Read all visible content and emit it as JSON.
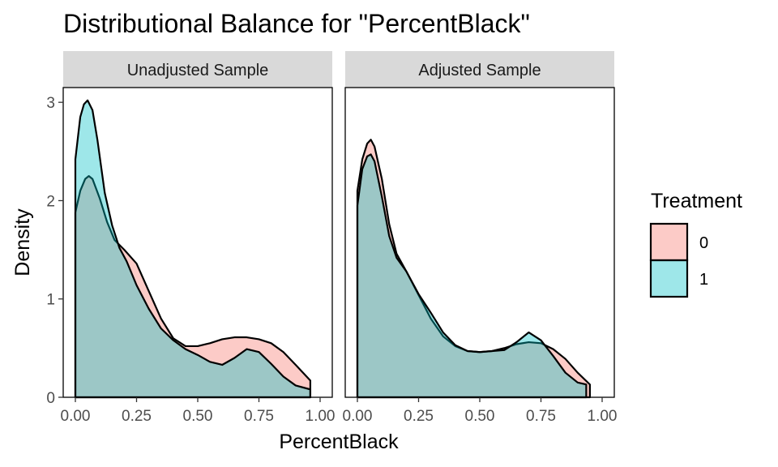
{
  "chart_data": {
    "type": "area",
    "title": "Distributional Balance for \"PercentBlack\"",
    "xlabel": "PercentBlack",
    "ylabel": "Density",
    "xlim": [
      0,
      1
    ],
    "ylim": [
      0,
      3.15
    ],
    "x_ticks": [
      0,
      0.25,
      0.5,
      0.75,
      1
    ],
    "x_tick_labels": [
      "0.00",
      "0.25",
      "0.50",
      "0.75",
      "1.00"
    ],
    "y_ticks": [
      0,
      1,
      2,
      3
    ],
    "y_tick_labels": [
      "0",
      "1",
      "2",
      "3"
    ],
    "grid": false,
    "legend": {
      "title": "Treatment",
      "position": "right",
      "entries": [
        {
          "label": "0",
          "color": "#F8766D"
        },
        {
          "label": "1",
          "color": "#00BFC4"
        }
      ]
    },
    "panels": [
      {
        "name": "Unadjusted Sample",
        "series": [
          {
            "treatment": "0",
            "color": "#F8766D",
            "points": [
              [
                0.0,
                1.88
              ],
              [
                0.02,
                2.1
              ],
              [
                0.04,
                2.22
              ],
              [
                0.055,
                2.25
              ],
              [
                0.07,
                2.22
              ],
              [
                0.1,
                2.02
              ],
              [
                0.13,
                1.78
              ],
              [
                0.16,
                1.6
              ],
              [
                0.2,
                1.5
              ],
              [
                0.25,
                1.36
              ],
              [
                0.3,
                1.08
              ],
              [
                0.35,
                0.8
              ],
              [
                0.4,
                0.6
              ],
              [
                0.45,
                0.52
              ],
              [
                0.5,
                0.52
              ],
              [
                0.55,
                0.55
              ],
              [
                0.6,
                0.59
              ],
              [
                0.65,
                0.61
              ],
              [
                0.7,
                0.61
              ],
              [
                0.75,
                0.59
              ],
              [
                0.8,
                0.55
              ],
              [
                0.85,
                0.46
              ],
              [
                0.9,
                0.33
              ],
              [
                0.96,
                0.17
              ]
            ]
          },
          {
            "treatment": "1",
            "color": "#00BFC4",
            "points": [
              [
                0.0,
                2.42
              ],
              [
                0.02,
                2.85
              ],
              [
                0.035,
                2.98
              ],
              [
                0.05,
                3.02
              ],
              [
                0.07,
                2.92
              ],
              [
                0.09,
                2.62
              ],
              [
                0.12,
                2.08
              ],
              [
                0.15,
                1.75
              ],
              [
                0.18,
                1.52
              ],
              [
                0.21,
                1.38
              ],
              [
                0.25,
                1.14
              ],
              [
                0.3,
                0.9
              ],
              [
                0.35,
                0.7
              ],
              [
                0.4,
                0.58
              ],
              [
                0.45,
                0.49
              ],
              [
                0.5,
                0.43
              ],
              [
                0.55,
                0.36
              ],
              [
                0.6,
                0.33
              ],
              [
                0.65,
                0.4
              ],
              [
                0.7,
                0.49
              ],
              [
                0.75,
                0.46
              ],
              [
                0.8,
                0.34
              ],
              [
                0.85,
                0.21
              ],
              [
                0.9,
                0.12
              ],
              [
                0.96,
                0.08
              ]
            ]
          }
        ]
      },
      {
        "name": "Adjusted Sample",
        "series": [
          {
            "treatment": "0",
            "color": "#F8766D",
            "points": [
              [
                0.0,
                2.1
              ],
              [
                0.02,
                2.42
              ],
              [
                0.04,
                2.58
              ],
              [
                0.055,
                2.62
              ],
              [
                0.07,
                2.55
              ],
              [
                0.1,
                2.22
              ],
              [
                0.13,
                1.76
              ],
              [
                0.16,
                1.46
              ],
              [
                0.2,
                1.28
              ],
              [
                0.25,
                1.04
              ],
              [
                0.3,
                0.8
              ],
              [
                0.35,
                0.62
              ],
              [
                0.4,
                0.52
              ],
              [
                0.45,
                0.47
              ],
              [
                0.5,
                0.46
              ],
              [
                0.55,
                0.47
              ],
              [
                0.6,
                0.5
              ],
              [
                0.65,
                0.54
              ],
              [
                0.7,
                0.56
              ],
              [
                0.75,
                0.55
              ],
              [
                0.8,
                0.49
              ],
              [
                0.85,
                0.39
              ],
              [
                0.9,
                0.25
              ],
              [
                0.95,
                0.13
              ]
            ]
          },
          {
            "treatment": "1",
            "color": "#00BFC4",
            "points": [
              [
                0.0,
                1.95
              ],
              [
                0.02,
                2.32
              ],
              [
                0.04,
                2.45
              ],
              [
                0.055,
                2.47
              ],
              [
                0.07,
                2.4
              ],
              [
                0.1,
                2.04
              ],
              [
                0.13,
                1.64
              ],
              [
                0.16,
                1.42
              ],
              [
                0.2,
                1.28
              ],
              [
                0.25,
                1.05
              ],
              [
                0.3,
                0.86
              ],
              [
                0.35,
                0.66
              ],
              [
                0.4,
                0.53
              ],
              [
                0.45,
                0.47
              ],
              [
                0.5,
                0.46
              ],
              [
                0.55,
                0.47
              ],
              [
                0.6,
                0.48
              ],
              [
                0.65,
                0.56
              ],
              [
                0.7,
                0.66
              ],
              [
                0.75,
                0.58
              ],
              [
                0.8,
                0.42
              ],
              [
                0.85,
                0.25
              ],
              [
                0.9,
                0.15
              ],
              [
                0.935,
                0.13
              ]
            ]
          }
        ]
      }
    ]
  }
}
